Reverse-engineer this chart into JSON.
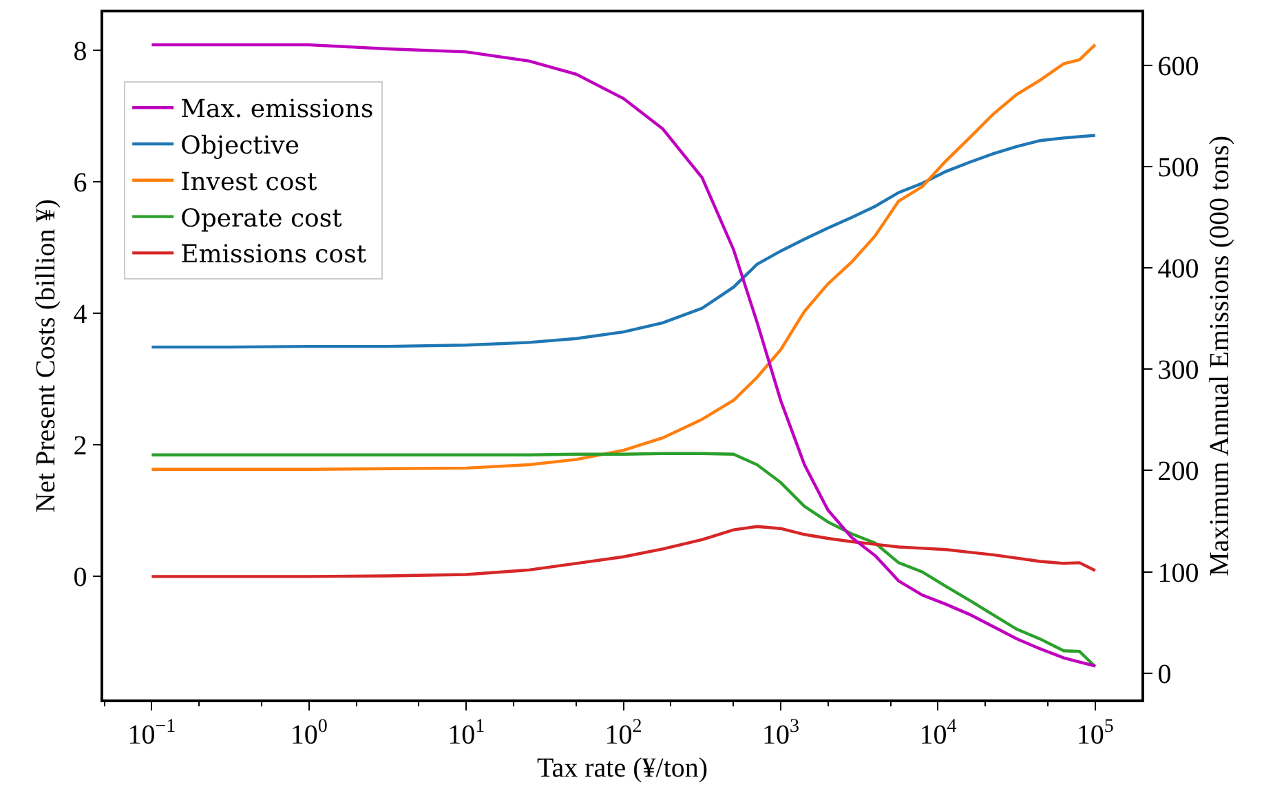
{
  "chart_data": {
    "type": "line",
    "xlabel": "Tax rate (¥/ton)",
    "ylabel": "Net Present Costs (billion ¥)",
    "y2label": "Maximum Annual Emissions (000 tons)",
    "log": "x",
    "legend": "top left",
    "marker": "none",
    "line_style": "solid",
    "x": [
      0.1,
      0.316,
      1,
      3.16,
      10,
      25.1,
      50.1,
      100,
      178,
      316,
      501,
      708,
      1000,
      1413,
      1995,
      2818,
      3981,
      5623,
      7943,
      11220,
      15850,
      22390,
      31620,
      44670,
      63100,
      79430,
      100000
    ],
    "xlim": [
      0.0492,
      196800
    ],
    "xticks": [
      {
        "value": 0.1,
        "label": "10$^{−1}$"
      },
      {
        "value": 1,
        "label": "10$^{0}$"
      },
      {
        "value": 10,
        "label": "10$^{1}$"
      },
      {
        "value": 100,
        "label": "10$^{2}$"
      },
      {
        "value": 1000,
        "label": "10$^{3}$"
      },
      {
        "value": 10000,
        "label": "10$^{4}$"
      },
      {
        "value": 100000,
        "label": "10$^{5}$"
      }
    ],
    "ylim": [
      -1.87,
      8.58
    ],
    "yticks": [
      0,
      2,
      4,
      6,
      8
    ],
    "y2lim": [
      -26,
      652
    ],
    "y2ticks": [
      0,
      100,
      200,
      300,
      400,
      500,
      600
    ],
    "series": [
      {
        "name": "Max. emissions",
        "color": "#bf00bf",
        "axis": "y2",
        "values": [
          620,
          620,
          620,
          616,
          613,
          604,
          591,
          567,
          537,
          489,
          418,
          346,
          269,
          206,
          161,
          134,
          116,
          91,
          77,
          68,
          58,
          46,
          34,
          24,
          15,
          11,
          7
        ]
      },
      {
        "name": "Objective",
        "color": "#1f77b4",
        "values": [
          3.49,
          3.49,
          3.5,
          3.5,
          3.52,
          3.56,
          3.62,
          3.72,
          3.86,
          4.08,
          4.4,
          4.75,
          4.95,
          5.13,
          5.3,
          5.46,
          5.63,
          5.84,
          5.98,
          6.16,
          6.3,
          6.43,
          6.54,
          6.63,
          6.67,
          6.69,
          6.71
        ]
      },
      {
        "name": "Invest cost",
        "color": "#ff7f0e",
        "values": [
          1.63,
          1.63,
          1.63,
          1.64,
          1.65,
          1.7,
          1.78,
          1.92,
          2.11,
          2.39,
          2.68,
          3.03,
          3.45,
          4.03,
          4.45,
          4.78,
          5.18,
          5.71,
          5.93,
          6.32,
          6.67,
          7.03,
          7.33,
          7.55,
          7.8,
          7.86,
          8.09
        ]
      },
      {
        "name": "Operate cost",
        "color": "#2ca02c",
        "values": [
          1.85,
          1.85,
          1.85,
          1.85,
          1.85,
          1.85,
          1.86,
          1.86,
          1.87,
          1.87,
          1.86,
          1.7,
          1.43,
          1.07,
          0.83,
          0.65,
          0.51,
          0.21,
          0.07,
          -0.15,
          -0.36,
          -0.58,
          -0.8,
          -0.95,
          -1.13,
          -1.14,
          -1.37
        ]
      },
      {
        "name": "Emissions cost",
        "color": "#d62728",
        "values": [
          0,
          0,
          0,
          0.01,
          0.03,
          0.1,
          0.2,
          0.3,
          0.42,
          0.56,
          0.71,
          0.76,
          0.73,
          0.64,
          0.58,
          0.53,
          0.49,
          0.45,
          0.43,
          0.41,
          0.37,
          0.33,
          0.28,
          0.23,
          0.2,
          0.21,
          0.09
        ]
      }
    ]
  }
}
